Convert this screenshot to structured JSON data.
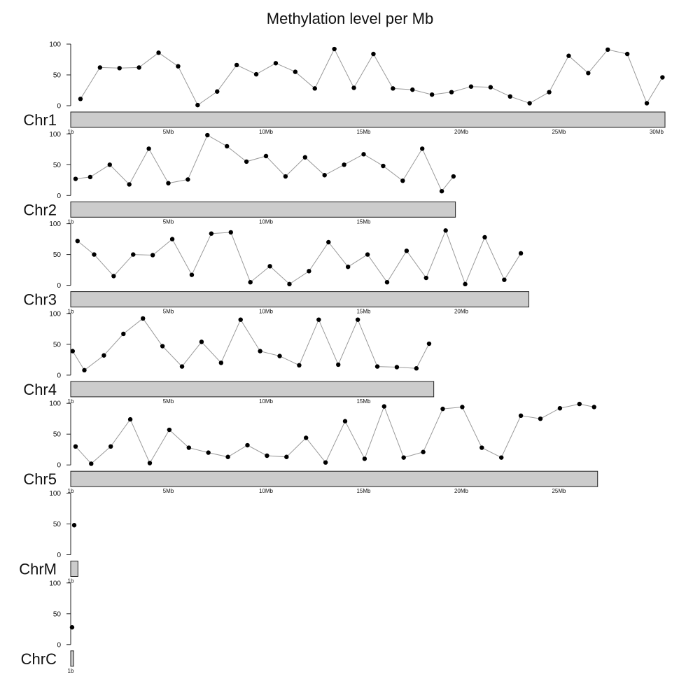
{
  "chart_data": {
    "type": "line",
    "title": "Methylation level per Mb",
    "xlabel": "",
    "ylabel": "",
    "ylim": [
      0,
      100
    ],
    "yticks": [
      "0",
      "50",
      "100"
    ],
    "x_unit": "Mb",
    "chromosomes": [
      {
        "name": "Chr1",
        "length_mb": 30.43,
        "xticks": [
          "1b",
          "5Mb",
          "10Mb",
          "15Mb",
          "20Mb",
          "25Mb",
          "30Mb"
        ],
        "x": [
          0.5,
          1.5,
          2.5,
          3.5,
          4.5,
          5.5,
          6.5,
          7.5,
          8.5,
          9.5,
          10.5,
          11.5,
          12.5,
          13.5,
          14.5,
          15.5,
          16.5,
          17.5,
          18.5,
          19.5,
          20.5,
          21.5,
          22.5,
          23.5,
          24.5,
          25.5,
          26.5,
          27.5,
          28.5,
          29.5,
          30.3
        ],
        "values": [
          11,
          62,
          61,
          62,
          86,
          64,
          1,
          23,
          66,
          51,
          69,
          55,
          28,
          92,
          29,
          84,
          28,
          26,
          18,
          22,
          31,
          30,
          15,
          4,
          22,
          81,
          53,
          91,
          84,
          4,
          46
        ]
      },
      {
        "name": "Chr2",
        "length_mb": 19.7,
        "xticks": [
          "1b",
          "5Mb",
          "10Mb",
          "15Mb"
        ],
        "x": [
          0.25,
          1.0,
          2.0,
          3.0,
          4.0,
          5.0,
          6.0,
          7.0,
          8.0,
          9.0,
          10.0,
          11.0,
          12.0,
          13.0,
          14.0,
          15.0,
          16.0,
          17.0,
          18.0,
          19.0,
          19.6
        ],
        "values": [
          27,
          30,
          50,
          18,
          76,
          20,
          26,
          98,
          80,
          55,
          64,
          31,
          62,
          33,
          50,
          67,
          48,
          24,
          76,
          7,
          31
        ]
      },
      {
        "name": "Chr3",
        "length_mb": 23.46,
        "xticks": [
          "1b",
          "5Mb",
          "10Mb",
          "15Mb",
          "20Mb"
        ],
        "x": [
          0.35,
          1.2,
          2.2,
          3.2,
          4.2,
          5.2,
          6.2,
          7.2,
          8.2,
          9.2,
          10.2,
          11.2,
          12.2,
          13.2,
          14.2,
          15.2,
          16.2,
          17.2,
          18.2,
          19.2,
          20.2,
          21.2,
          22.2,
          23.05
        ],
        "values": [
          72,
          50,
          15,
          50,
          49,
          75,
          17,
          84,
          86,
          5,
          31,
          2,
          23,
          70,
          30,
          50,
          5,
          56,
          12,
          89,
          2,
          78,
          9,
          52
        ]
      },
      {
        "name": "Chr4",
        "length_mb": 18.59,
        "xticks": [
          "1b",
          "5Mb",
          "10Mb",
          "15Mb"
        ],
        "x": [
          0.1,
          0.7,
          1.7,
          2.7,
          3.7,
          4.7,
          5.7,
          6.7,
          7.7,
          8.7,
          9.7,
          10.7,
          11.7,
          12.7,
          13.7,
          14.7,
          15.7,
          16.7,
          17.7,
          18.35
        ],
        "values": [
          39,
          8,
          32,
          67,
          92,
          47,
          14,
          54,
          20,
          90,
          39,
          31,
          16,
          90,
          17,
          90,
          14,
          13,
          11,
          51
        ]
      },
      {
        "name": "Chr5",
        "length_mb": 26.98,
        "xticks": [
          "1b",
          "5Mb",
          "10Mb",
          "15Mb",
          "20Mb",
          "25Mb"
        ],
        "x": [
          0.25,
          1.05,
          2.05,
          3.05,
          4.05,
          5.05,
          6.05,
          7.05,
          8.05,
          9.05,
          10.05,
          11.05,
          12.05,
          13.05,
          14.05,
          15.05,
          16.05,
          17.05,
          18.05,
          19.05,
          20.05,
          21.05,
          22.05,
          23.05,
          24.05,
          25.05,
          26.05,
          26.8
        ],
        "values": [
          30,
          2,
          30,
          74,
          3,
          57,
          28,
          20,
          13,
          32,
          15,
          13,
          44,
          4,
          71,
          10,
          95,
          12,
          21,
          91,
          94,
          28,
          12,
          80,
          75,
          92,
          99,
          94
        ]
      },
      {
        "name": "ChrM",
        "length_mb": 0.37,
        "xticks": [
          "1b"
        ],
        "x": [
          0.18
        ],
        "values": [
          48
        ]
      },
      {
        "name": "ChrC",
        "length_mb": 0.15,
        "xticks": [
          "1b"
        ],
        "x": [
          0.07
        ],
        "values": [
          28
        ]
      }
    ]
  }
}
